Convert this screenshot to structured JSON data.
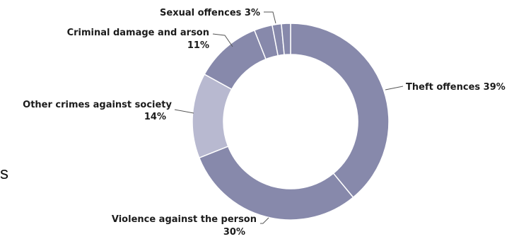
{
  "edge_text": "s",
  "chart_data": {
    "type": "pie",
    "variant": "donut",
    "title": "",
    "slices": [
      {
        "label": "Theft offences",
        "value": 39,
        "value_label": "39%",
        "color": "#8789ab"
      },
      {
        "label": "Violence against the person",
        "value": 30,
        "value_label": "30%",
        "color": "#8789ab"
      },
      {
        "label": "Other crimes against society",
        "value": 14,
        "value_label": "14%",
        "color": "#b8b9d0"
      },
      {
        "label": "Criminal damage and arson",
        "value": 11,
        "value_label": "11%",
        "color": "#8789ab"
      },
      {
        "label": "Sexual offences",
        "value": 3,
        "value_label": "3%",
        "color": "#8789ab"
      },
      {
        "label": "",
        "value": 1.5,
        "value_label": "",
        "color": "#8789ab"
      },
      {
        "label": "",
        "value": 1.5,
        "value_label": "",
        "color": "#8789ab"
      }
    ],
    "start_angle_deg": 0,
    "direction": "clockwise",
    "legend": "none",
    "labels": "outside with leader lines"
  }
}
